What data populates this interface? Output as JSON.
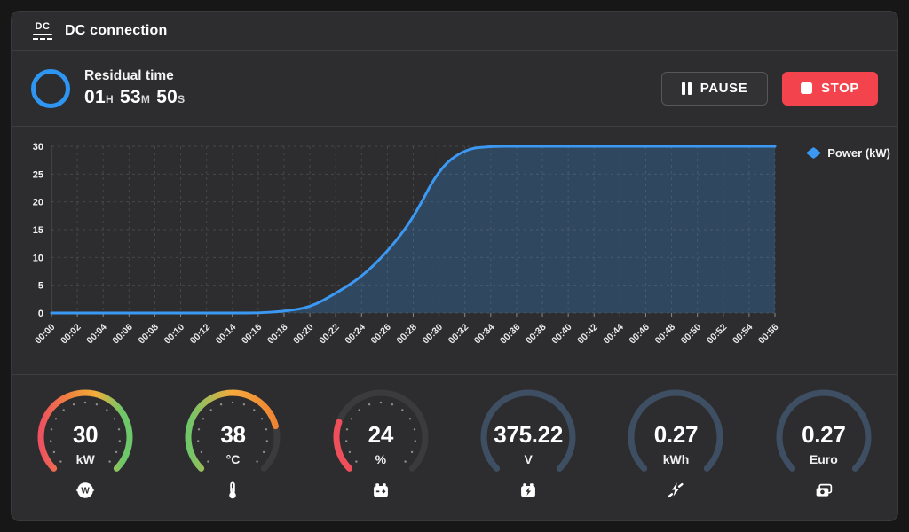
{
  "header": {
    "title": "DC connection",
    "icon": "dc-icon",
    "icon_text": "DC"
  },
  "status": {
    "label": "Residual time",
    "time": {
      "hours": "01",
      "h_unit": "H",
      "minutes": "53",
      "m_unit": "M",
      "seconds": "50",
      "s_unit": "S"
    },
    "pause_label": "PAUSE",
    "stop_label": "STOP"
  },
  "chart_data": {
    "type": "area",
    "title": "",
    "xlabel": "",
    "ylabel": "",
    "x": [
      "00:00",
      "00:02",
      "00:04",
      "00:06",
      "00:08",
      "00:10",
      "00:12",
      "00:14",
      "00:16",
      "00:18",
      "00:20",
      "00:22",
      "00:24",
      "00:26",
      "00:28",
      "00:30",
      "00:32",
      "00:34",
      "00:36",
      "00:38",
      "00:40",
      "00:42",
      "00:44",
      "00:46",
      "00:48",
      "00:50",
      "00:52",
      "00:54",
      "00:56"
    ],
    "series": [
      {
        "name": "Power (kW)",
        "color": "#3b99f4",
        "values": [
          0,
          0,
          0,
          0,
          0,
          0,
          0,
          0,
          0,
          0.3,
          1,
          3.5,
          6.5,
          11,
          17,
          26,
          29.5,
          30,
          30,
          30,
          30,
          30,
          30,
          30,
          30,
          30,
          30,
          30,
          30
        ]
      }
    ],
    "ylim": [
      0,
      30
    ],
    "yticks": [
      0,
      5,
      10,
      15,
      20,
      25,
      30
    ],
    "grid": true,
    "legend_position": "right",
    "fill_opacity": 0.25
  },
  "gauges": [
    {
      "value": "30",
      "unit": "kW",
      "icon": "power-meter-icon",
      "fraction": 1,
      "track": "#3b3b3d",
      "dots": true,
      "stops": [
        [
          "0",
          "#ee5160"
        ],
        [
          "0.35",
          "#f0883c"
        ],
        [
          "0.62",
          "#f3ae3a"
        ],
        [
          "0.92",
          "#6ec769"
        ]
      ]
    },
    {
      "value": "38",
      "unit": "°C",
      "icon": "thermometer-icon",
      "fraction": 0.78,
      "track": "#3b3b3d",
      "dots": true,
      "stops": [
        [
          "0",
          "#6ec769"
        ],
        [
          "0.5",
          "#f5a93c"
        ],
        [
          "1",
          "#ef8434"
        ]
      ]
    },
    {
      "value": "24",
      "unit": "%",
      "icon": "battery-icon",
      "fraction": 0.24,
      "track": "#3b3b3d",
      "dots": true,
      "stops": [
        [
          "0",
          "#ee4f5a"
        ],
        [
          "1",
          "#ee4f5a"
        ]
      ]
    },
    {
      "value": "375.22",
      "unit": "V",
      "icon": "battery-charge-icon",
      "fraction": 1,
      "track": "none",
      "dots": false,
      "stops": [
        [
          "0",
          "#3f4f63"
        ],
        [
          "1",
          "#3f4f63"
        ]
      ]
    },
    {
      "value": "0.27",
      "unit": "kWh",
      "icon": "plug-energy-icon",
      "fraction": 1,
      "track": "none",
      "dots": false,
      "stops": [
        [
          "0",
          "#3f4f63"
        ],
        [
          "1",
          "#3f4f63"
        ]
      ]
    },
    {
      "value": "0.27",
      "unit": "Euro",
      "icon": "money-icon",
      "fraction": 1,
      "track": "none",
      "dots": false,
      "stops": [
        [
          "0",
          "#3f4f63"
        ],
        [
          "1",
          "#3f4f63"
        ]
      ]
    }
  ],
  "colors": {
    "page_bg": "#171717",
    "panel_bg": "#2d2d2f",
    "divider": "#3e3e40",
    "accent_blue": "#2e96f2",
    "chart_line": "#3b99f4",
    "grid_line": "#474747",
    "stop_red": "#f3444e",
    "gauge_slate": "#3f4f63"
  }
}
